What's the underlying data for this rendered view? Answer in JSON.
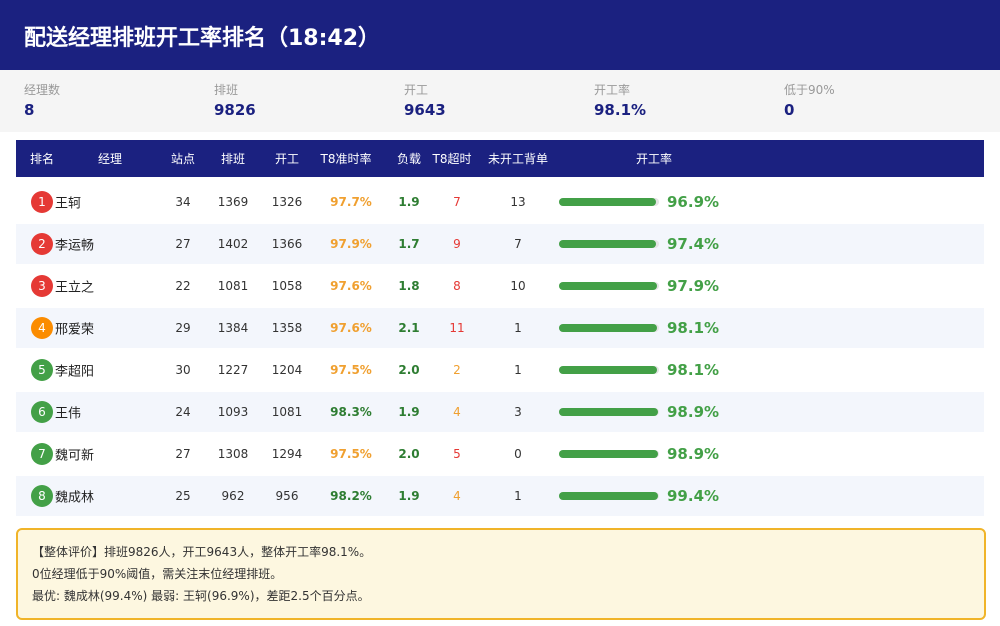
{
  "header": {
    "title": "配送经理排班开工率排名（18:42）"
  },
  "stats": [
    {
      "label": "经理数",
      "value": "8"
    },
    {
      "label": "排班",
      "value": "9826"
    },
    {
      "label": "开工",
      "value": "9643"
    },
    {
      "label": "开工率",
      "value": "98.1%"
    },
    {
      "label": "低于90%",
      "value": "0"
    }
  ],
  "table": {
    "columns": [
      "排名",
      "经理",
      "站点",
      "排班",
      "开工",
      "T8准时率",
      "负载",
      "T8超时",
      "未开工背单",
      "开工率"
    ],
    "rows": [
      {
        "rank": "1",
        "name": "王轲",
        "sites": "34",
        "scheduled": "1369",
        "started": "1326",
        "ontime": "97.7%",
        "load": "1.9",
        "overtime": "7",
        "backlog": "13",
        "rate": 96.9,
        "rate_label": "96.9%",
        "badge_color": "#e53935",
        "ontime_color": "#f0a030",
        "overtime_color": "#e53935"
      },
      {
        "rank": "2",
        "name": "李运畅",
        "sites": "27",
        "scheduled": "1402",
        "started": "1366",
        "ontime": "97.9%",
        "load": "1.7",
        "overtime": "9",
        "backlog": "7",
        "rate": 97.4,
        "rate_label": "97.4%",
        "badge_color": "#e53935",
        "ontime_color": "#f0a030",
        "overtime_color": "#e53935"
      },
      {
        "rank": "3",
        "name": "王立之",
        "sites": "22",
        "scheduled": "1081",
        "started": "1058",
        "ontime": "97.6%",
        "load": "1.8",
        "overtime": "8",
        "backlog": "10",
        "rate": 97.9,
        "rate_label": "97.9%",
        "badge_color": "#e53935",
        "ontime_color": "#f0a030",
        "overtime_color": "#e53935"
      },
      {
        "rank": "4",
        "name": "邢爱荣",
        "sites": "29",
        "scheduled": "1384",
        "started": "1358",
        "ontime": "97.6%",
        "load": "2.1",
        "overtime": "11",
        "backlog": "1",
        "rate": 98.1,
        "rate_label": "98.1%",
        "badge_color": "#fb8c00",
        "ontime_color": "#f0a030",
        "overtime_color": "#e53935"
      },
      {
        "rank": "5",
        "name": "李超阳",
        "sites": "30",
        "scheduled": "1227",
        "started": "1204",
        "ontime": "97.5%",
        "load": "2.0",
        "overtime": "2",
        "backlog": "1",
        "rate": 98.1,
        "rate_label": "98.1%",
        "badge_color": "#43a047",
        "ontime_color": "#f0a030",
        "overtime_color": "#f0a030"
      },
      {
        "rank": "6",
        "name": "王伟",
        "sites": "24",
        "scheduled": "1093",
        "started": "1081",
        "ontime": "98.3%",
        "load": "1.9",
        "overtime": "4",
        "backlog": "3",
        "rate": 98.9,
        "rate_label": "98.9%",
        "badge_color": "#43a047",
        "ontime_color": "#2e7d32",
        "overtime_color": "#f0a030"
      },
      {
        "rank": "7",
        "name": "魏可新",
        "sites": "27",
        "scheduled": "1308",
        "started": "1294",
        "ontime": "97.5%",
        "load": "2.0",
        "overtime": "5",
        "backlog": "0",
        "rate": 98.9,
        "rate_label": "98.9%",
        "badge_color": "#43a047",
        "ontime_color": "#f0a030",
        "overtime_color": "#e53935"
      },
      {
        "rank": "8",
        "name": "魏成林",
        "sites": "25",
        "scheduled": "962",
        "started": "956",
        "ontime": "98.2%",
        "load": "1.9",
        "overtime": "4",
        "backlog": "1",
        "rate": 99.4,
        "rate_label": "99.4%",
        "badge_color": "#43a047",
        "ontime_color": "#2e7d32",
        "overtime_color": "#f0a030"
      }
    ]
  },
  "summary": [
    "【整体评价】排班9826人，开工9643人，整体开工率98.1%。",
    "0位经理低于90%阈值，需关注末位经理排班。",
    "最优: 魏成林(99.4%)  最弱: 王轲(96.9%)，差距2.5个百分点。"
  ]
}
